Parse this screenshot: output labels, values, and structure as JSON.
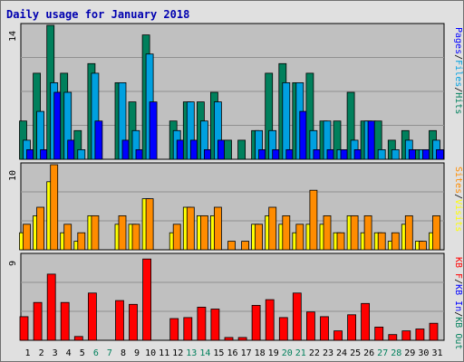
{
  "colors": {
    "hits": "#00805c",
    "files": "#00a0e0",
    "pages": "#0000ff",
    "visits": "#ffff00",
    "sites": "#ff8c00",
    "kbin": "#0000ff",
    "kbout": "#00805c",
    "kbf": "#ff0000",
    "title": "#0000b0",
    "plot_bg": "#c0c0c0",
    "grid": "#909090",
    "bar_outline": "#000000",
    "weekend_tick": "#00805c"
  },
  "chart_data": [
    {
      "type": "bar",
      "title": "Daily usage for January 2018",
      "categories": [
        "1",
        "2",
        "3",
        "4",
        "5",
        "6",
        "7",
        "8",
        "9",
        "10",
        "11",
        "12",
        "13",
        "14",
        "15",
        "16",
        "17",
        "18",
        "19",
        "20",
        "21",
        "22",
        "23",
        "24",
        "25",
        "26",
        "27",
        "28",
        "29",
        "30",
        "31"
      ],
      "weekend_days": [
        "6",
        "7",
        "13",
        "14",
        "20",
        "21",
        "27",
        "28"
      ],
      "ylim": [
        0,
        14
      ],
      "max_label": "14",
      "right_labels": [
        "Pages",
        "/",
        "Files",
        "/",
        "Hits"
      ],
      "series": [
        {
          "name": "Hits",
          "color_key": "hits",
          "values": [
            4,
            9,
            14,
            9,
            3,
            10,
            0,
            8,
            6,
            13,
            0,
            4,
            6,
            6,
            7,
            2,
            2,
            3,
            9,
            10,
            8,
            9,
            4,
            4,
            7,
            4,
            4,
            2,
            3,
            1,
            3
          ]
        },
        {
          "name": "Files",
          "color_key": "files",
          "values": [
            2,
            5,
            8,
            7,
            1,
            9,
            0,
            8,
            3,
            11,
            0,
            3,
            6,
            4,
            6,
            0,
            0,
            3,
            3,
            8,
            8,
            3,
            4,
            1,
            2,
            4,
            1,
            1,
            2,
            1,
            2
          ]
        },
        {
          "name": "Pages",
          "color_key": "pages",
          "values": [
            1,
            1,
            7,
            2,
            0,
            4,
            0,
            2,
            1,
            6,
            0,
            2,
            2,
            1,
            2,
            0,
            0,
            1,
            1,
            1,
            5,
            1,
            1,
            1,
            1,
            4,
            0,
            0,
            1,
            1,
            1
          ]
        }
      ]
    },
    {
      "type": "bar",
      "ylim": [
        0,
        10
      ],
      "max_label": "10",
      "right_labels": [
        "Sites",
        "/",
        "Visits"
      ],
      "series": [
        {
          "name": "Visits",
          "color_key": "visits",
          "values": [
            2,
            4,
            8,
            2,
            1,
            4,
            0,
            3,
            3,
            6,
            0,
            2,
            5,
            4,
            4,
            0,
            0,
            3,
            4,
            3,
            2,
            3,
            3,
            2,
            4,
            2,
            2,
            1,
            3,
            1,
            2
          ]
        },
        {
          "name": "Sites",
          "color_key": "sites",
          "values": [
            3,
            5,
            10,
            3,
            2,
            4,
            0,
            4,
            3,
            6,
            0,
            3,
            5,
            4,
            5,
            1,
            1,
            3,
            5,
            4,
            3,
            7,
            4,
            2,
            4,
            4,
            2,
            2,
            4,
            1,
            4
          ]
        }
      ]
    },
    {
      "type": "bar",
      "ylim": [
        0,
        9
      ],
      "max_label": "9",
      "right_labels": [
        "KB F",
        "/",
        "KB In",
        "/",
        "KB Out"
      ],
      "series": [
        {
          "name": "KB F",
          "color_key": "kbf",
          "values": [
            2.5,
            4.0,
            7.0,
            4.0,
            0.4,
            5.0,
            0,
            4.2,
            3.8,
            8.6,
            0,
            2.3,
            2.4,
            3.5,
            3.3,
            0.3,
            0.3,
            3.7,
            4.3,
            2.4,
            5.0,
            3.0,
            2.5,
            1.0,
            2.7,
            3.9,
            1.4,
            0.6,
            1.0,
            1.2,
            1.8
          ]
        }
      ]
    }
  ]
}
